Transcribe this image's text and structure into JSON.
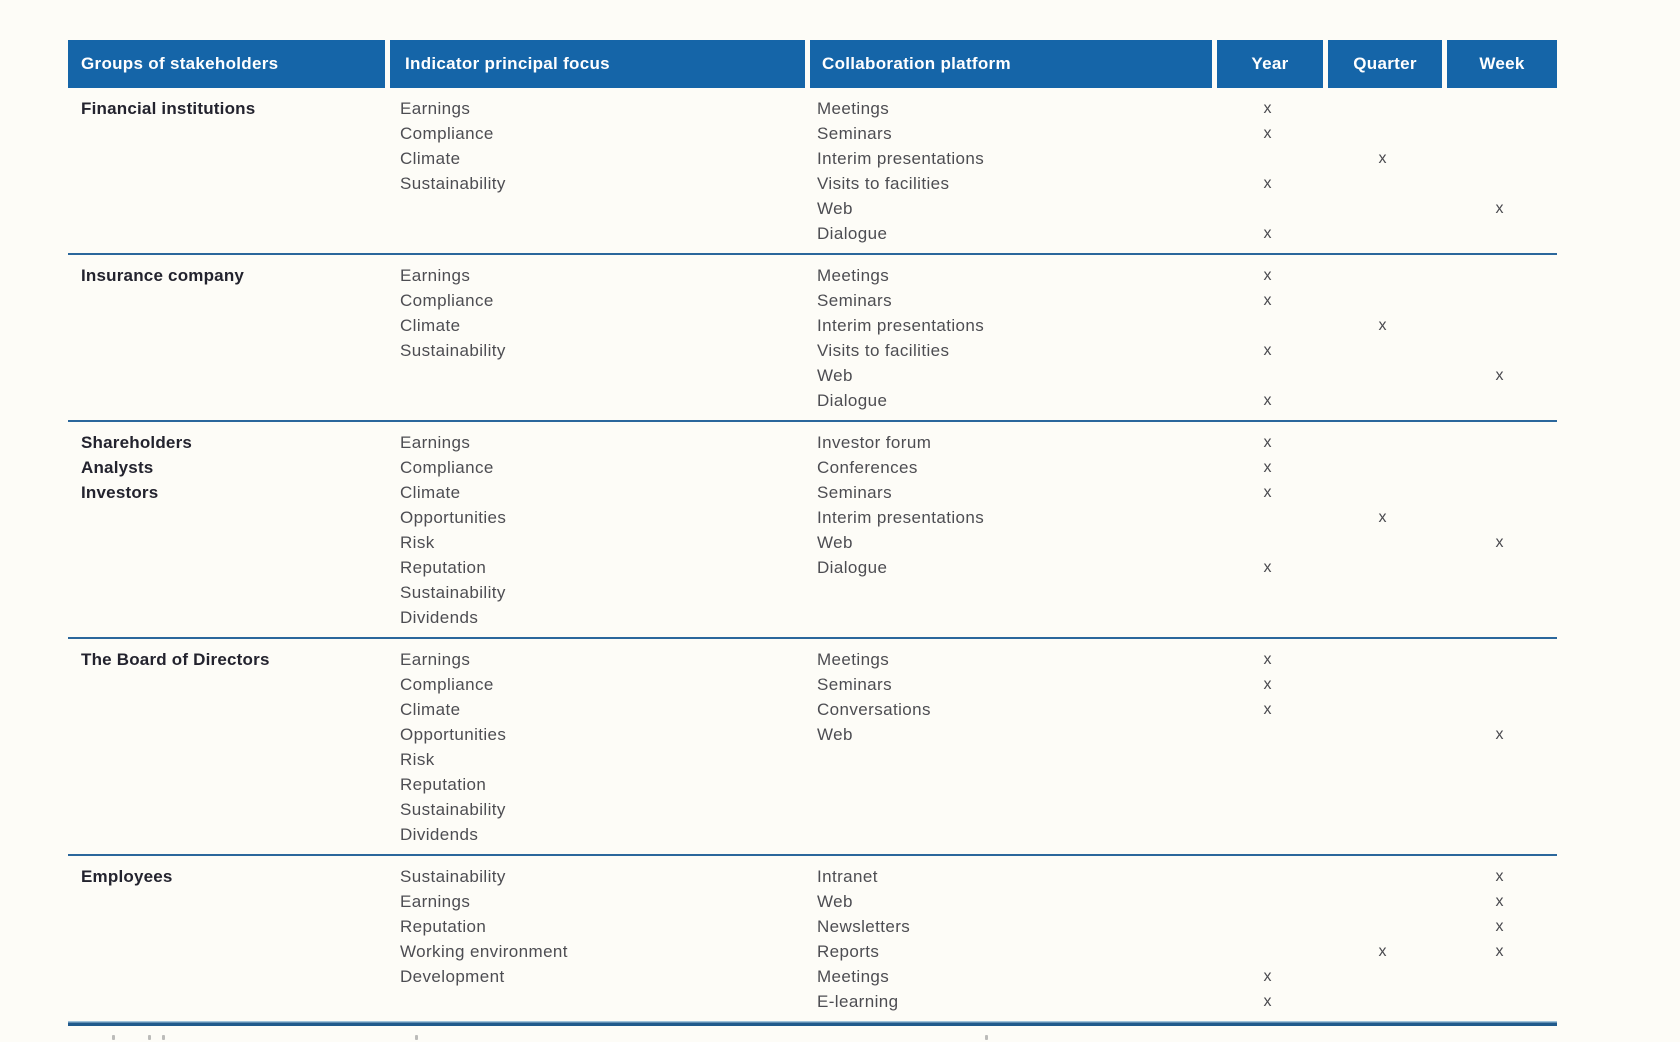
{
  "colors": {
    "page_background": "#fdfcf7",
    "header_background": "#1565a8",
    "header_text": "#ffffff",
    "separator_line": "#2b679c",
    "bottom_line_dark": "#205a8c",
    "bottom_line_light": "#9fc2da",
    "group_name_text": "#23232e",
    "body_text": "#4d4d52",
    "mark_text": "#4a4a4f"
  },
  "table": {
    "columns": [
      "Groups of stakeholders",
      "Indicator principal focus",
      "Collaboration platform",
      "Year",
      "Quarter",
      "Week"
    ],
    "mark_symbol": "x",
    "groups": [
      {
        "stakeholders": [
          "Financial institutions"
        ],
        "indicators": [
          "Earnings",
          "Compliance",
          "Climate",
          "Sustainability"
        ],
        "platforms": [
          {
            "name": "Meetings",
            "marks": [
              "year"
            ]
          },
          {
            "name": "Seminars",
            "marks": [
              "year"
            ]
          },
          {
            "name": "Interim presentations",
            "marks": [
              "quarter"
            ]
          },
          {
            "name": "Visits to facilities",
            "marks": [
              "year"
            ]
          },
          {
            "name": "Web",
            "marks": [
              "week"
            ]
          },
          {
            "name": "Dialogue",
            "marks": [
              "year"
            ]
          }
        ]
      },
      {
        "stakeholders": [
          "Insurance company"
        ],
        "indicators": [
          "Earnings",
          "Compliance",
          "Climate",
          "Sustainability"
        ],
        "platforms": [
          {
            "name": "Meetings",
            "marks": [
              "year"
            ]
          },
          {
            "name": "Seminars",
            "marks": [
              "year"
            ]
          },
          {
            "name": "Interim presentations",
            "marks": [
              "quarter"
            ]
          },
          {
            "name": "Visits to facilities",
            "marks": [
              "year"
            ]
          },
          {
            "name": "Web",
            "marks": [
              "week"
            ]
          },
          {
            "name": "Dialogue",
            "marks": [
              "year"
            ]
          }
        ]
      },
      {
        "stakeholders": [
          "Shareholders",
          "Analysts",
          "Investors"
        ],
        "indicators": [
          "Earnings",
          "Compliance",
          "Climate",
          "Opportunities",
          "Risk",
          "Reputation",
          "Sustainability",
          "Dividends"
        ],
        "platforms": [
          {
            "name": "Investor forum",
            "marks": [
              "year"
            ]
          },
          {
            "name": "Conferences",
            "marks": [
              "year"
            ]
          },
          {
            "name": "Seminars",
            "marks": [
              "year"
            ]
          },
          {
            "name": "Interim presentations",
            "marks": [
              "quarter"
            ]
          },
          {
            "name": "Web",
            "marks": [
              "week"
            ]
          },
          {
            "name": "Dialogue",
            "marks": [
              "year"
            ]
          }
        ]
      },
      {
        "stakeholders": [
          "The Board of Directors"
        ],
        "indicators": [
          "Earnings",
          "Compliance",
          "Climate",
          "Opportunities",
          "Risk",
          "Reputation",
          "Sustainability",
          "Dividends"
        ],
        "platforms": [
          {
            "name": "Meetings",
            "marks": [
              "year"
            ]
          },
          {
            "name": "Seminars",
            "marks": [
              "year"
            ]
          },
          {
            "name": "Conversations",
            "marks": [
              "year"
            ]
          },
          {
            "name": "Web",
            "marks": [
              "week"
            ]
          }
        ]
      },
      {
        "stakeholders": [
          "Employees"
        ],
        "indicators": [
          "Sustainability",
          "Earnings",
          "Reputation",
          "Working environment",
          "Development"
        ],
        "platforms": [
          {
            "name": "Intranet",
            "marks": [
              "week"
            ]
          },
          {
            "name": "Web",
            "marks": [
              "week"
            ]
          },
          {
            "name": "Newsletters",
            "marks": [
              "week"
            ]
          },
          {
            "name": "Reports",
            "marks": [
              "quarter",
              "week"
            ]
          },
          {
            "name": "Meetings",
            "marks": [
              "year"
            ]
          },
          {
            "name": "E-learning",
            "marks": [
              "year"
            ]
          }
        ]
      }
    ]
  }
}
